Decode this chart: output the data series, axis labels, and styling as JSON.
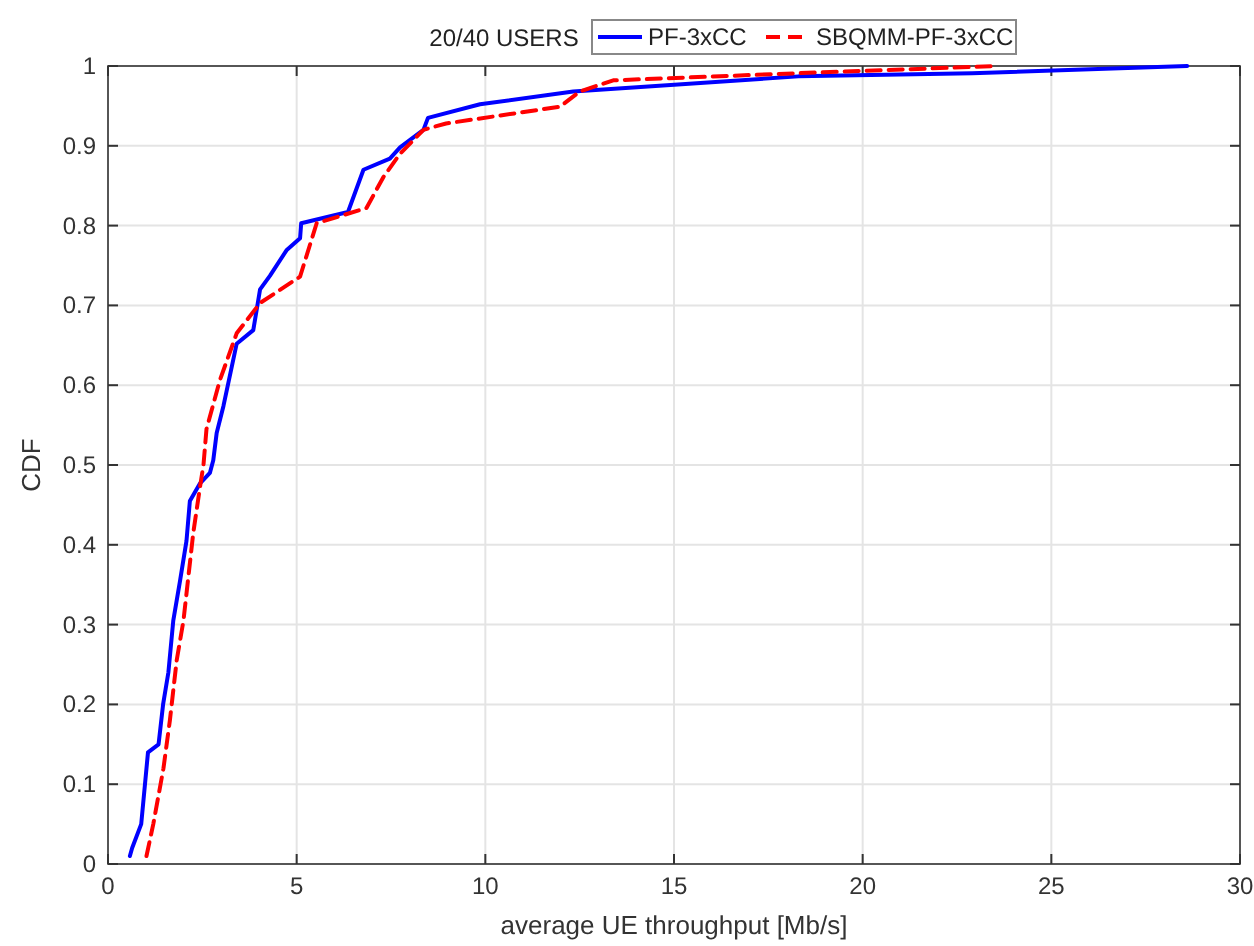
{
  "chart_data": {
    "type": "line",
    "title": "20/40 USERS",
    "xlabel": "average UE throughput [Mb/s]",
    "ylabel": "CDF",
    "xlim": [
      0,
      30
    ],
    "xticks": [
      0,
      5,
      10,
      15,
      20,
      25,
      30
    ],
    "ylim": [
      0,
      1
    ],
    "yticks": [
      0,
      0.1,
      0.2,
      0.3,
      0.4,
      0.5,
      0.6,
      0.7,
      0.8,
      0.9,
      1
    ],
    "grid": true,
    "legend": "top right",
    "series": [
      {
        "name": "PF-3xCC",
        "color": "#0000ff",
        "line_style": "solid",
        "x": [
          0.58,
          0.64,
          0.88,
          1.06,
          1.34,
          1.46,
          1.6,
          1.73,
          1.91,
          2.08,
          2.17,
          2.44,
          2.7,
          2.79,
          2.88,
          3.06,
          3.41,
          3.85,
          4.03,
          4.29,
          4.73,
          5.09,
          5.12,
          6.36,
          6.77,
          7.47,
          7.74,
          8.36,
          8.48,
          9.86,
          12.33,
          18.3,
          22.9,
          28.6
        ],
        "values": [
          0.01,
          0.02,
          0.05,
          0.14,
          0.15,
          0.2,
          0.24,
          0.305,
          0.355,
          0.405,
          0.455,
          0.477,
          0.49,
          0.506,
          0.54,
          0.574,
          0.652,
          0.669,
          0.72,
          0.737,
          0.769,
          0.784,
          0.803,
          0.817,
          0.87,
          0.884,
          0.898,
          0.92,
          0.935,
          0.952,
          0.968,
          0.987,
          0.991,
          1.0
        ]
      },
      {
        "name": "SBQMM-PF-3xCC",
        "color": "#ff0000",
        "line_style": "dashed",
        "x": [
          1.02,
          1.2,
          1.47,
          1.64,
          1.82,
          2.0,
          2.26,
          2.44,
          2.53,
          2.61,
          2.97,
          3.41,
          4.03,
          5.09,
          5.53,
          6.85,
          7.3,
          7.74,
          8.36,
          8.96,
          11.98,
          12.5,
          13.39,
          18.3,
          23.6
        ],
        "values": [
          0.01,
          0.05,
          0.12,
          0.18,
          0.255,
          0.305,
          0.415,
          0.473,
          0.5,
          0.545,
          0.607,
          0.665,
          0.703,
          0.736,
          0.803,
          0.822,
          0.861,
          0.89,
          0.92,
          0.928,
          0.949,
          0.968,
          0.982,
          0.991,
          1.0
        ]
      }
    ]
  }
}
